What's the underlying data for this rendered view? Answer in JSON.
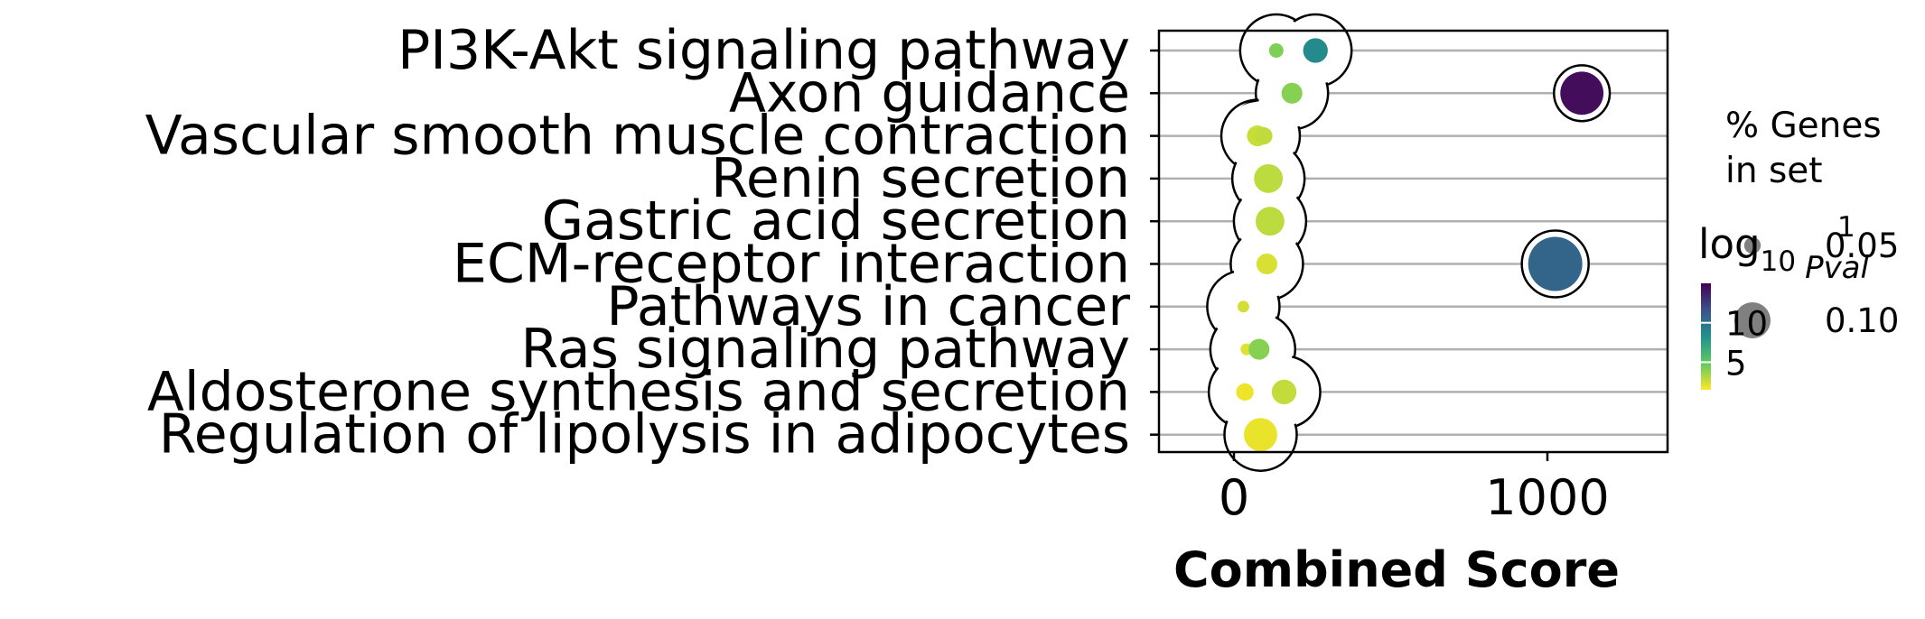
{
  "chart_data": {
    "type": "scatter",
    "xlabel": "Combined Score",
    "xticks": [
      0,
      1000
    ],
    "xlim": [
      -240,
      1380
    ],
    "grid": "horizontal",
    "categories": [
      "PI3K-Akt signaling pathway",
      "Axon guidance",
      "Vascular smooth muscle contraction",
      "Renin secretion",
      "Gastric acid secretion",
      "ECM-receptor interaction",
      "Pathways in cancer",
      "Ras signaling pathway",
      "Aldosterone synthesis and secretion",
      "Regulation of lipolysis in adipocytes"
    ],
    "points": [
      {
        "category": "PI3K-Akt signaling pathway",
        "x": 135,
        "neg_log10_pval": 4.2,
        "pct_genes": 0.04
      },
      {
        "category": "PI3K-Akt signaling pathway",
        "x": 260,
        "neg_log10_pval": 8.6,
        "pct_genes": 0.07
      },
      {
        "category": "Axon guidance",
        "x": 185,
        "neg_log10_pval": 4.0,
        "pct_genes": 0.06
      },
      {
        "category": "Axon guidance",
        "x": 1110,
        "neg_log10_pval": 14.5,
        "pct_genes": 0.11
      },
      {
        "category": "Vascular smooth muscle contraction",
        "x": 75,
        "neg_log10_pval": 2.6,
        "pct_genes": 0.06
      },
      {
        "category": "Vascular smooth muscle contraction",
        "x": 95,
        "neg_log10_pval": 2.8,
        "pct_genes": 0.05
      },
      {
        "category": "Renin secretion",
        "x": 110,
        "neg_log10_pval": 2.9,
        "pct_genes": 0.08
      },
      {
        "category": "Gastric acid secretion",
        "x": 115,
        "neg_log10_pval": 2.9,
        "pct_genes": 0.08
      },
      {
        "category": "ECM-receptor interaction",
        "x": 105,
        "neg_log10_pval": 2.3,
        "pct_genes": 0.06
      },
      {
        "category": "ECM-receptor interaction",
        "x": 1025,
        "neg_log10_pval": 10.6,
        "pct_genes": 0.13
      },
      {
        "category": "Pathways in cancer",
        "x": 30,
        "neg_log10_pval": 2.4,
        "pct_genes": 0.03
      },
      {
        "category": "Ras signaling pathway",
        "x": 40,
        "neg_log10_pval": 2.2,
        "pct_genes": 0.03
      },
      {
        "category": "Ras signaling pathway",
        "x": 80,
        "neg_log10_pval": 4.0,
        "pct_genes": 0.06
      },
      {
        "category": "Aldosterone synthesis and secretion",
        "x": 35,
        "neg_log10_pval": 1.8,
        "pct_genes": 0.05
      },
      {
        "category": "Aldosterone synthesis and secretion",
        "x": 160,
        "neg_log10_pval": 2.7,
        "pct_genes": 0.07
      },
      {
        "category": "Regulation of lipolysis in adipocytes",
        "x": 85,
        "neg_log10_pval": 1.9,
        "pct_genes": 0.09
      }
    ],
    "colorbar": {
      "title": "log",
      "title_sub": "10",
      "title_suffix": "Pval",
      "title_sup": "1",
      "ticks": [
        10,
        5
      ],
      "range": [
        1.5,
        15
      ],
      "colormap": "viridis_r"
    },
    "size_legend": {
      "title_line1": "% Genes",
      "title_line2": "in set",
      "entries": [
        {
          "label": "0.05",
          "value": 0.05
        },
        {
          "label": "0.10",
          "value": 0.1
        }
      ],
      "color": "#808080"
    }
  }
}
